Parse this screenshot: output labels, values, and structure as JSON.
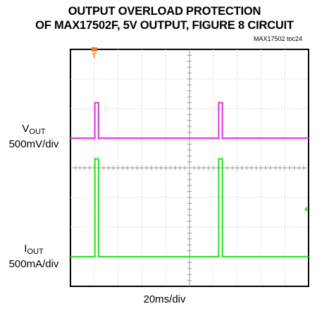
{
  "title_line1": "OUTPUT OVERLOAD PROTECTION",
  "title_line2": "OF MAX17502F, 5V OUTPUT, FIGURE 8 CIRCUIT",
  "toc_ref": "MAX17502 toc24",
  "chart_data": {
    "type": "line",
    "grid": true,
    "divisions": {
      "x": 10,
      "y": 8
    },
    "xlabel": "20ms/div",
    "x_unit": "ms",
    "xlim": [
      0,
      200
    ],
    "trigger_marker": {
      "label": "T",
      "x": 20,
      "color": "#f07a1e"
    },
    "series": [
      {
        "name_main": "V",
        "name_sub": "OUT",
        "scale": "500mV/div",
        "color": "#e040e0",
        "baseline_div": 5,
        "pulse_height_div": 1.2,
        "pulses_ms": [
          [
            20.5,
            23.6
          ],
          [
            124.5,
            127.6
          ]
        ]
      },
      {
        "name_main": "I",
        "name_sub": "OUT",
        "scale": "500mA/div",
        "color": "#2ee62e",
        "baseline_div": 1,
        "pulse_height_div": 3.3,
        "pulses_ms": [
          [
            20.5,
            23.6
          ],
          [
            124.5,
            127.6
          ]
        ]
      }
    ],
    "ground_marker": {
      "color": "#2ee62e",
      "div": 2.6
    }
  }
}
